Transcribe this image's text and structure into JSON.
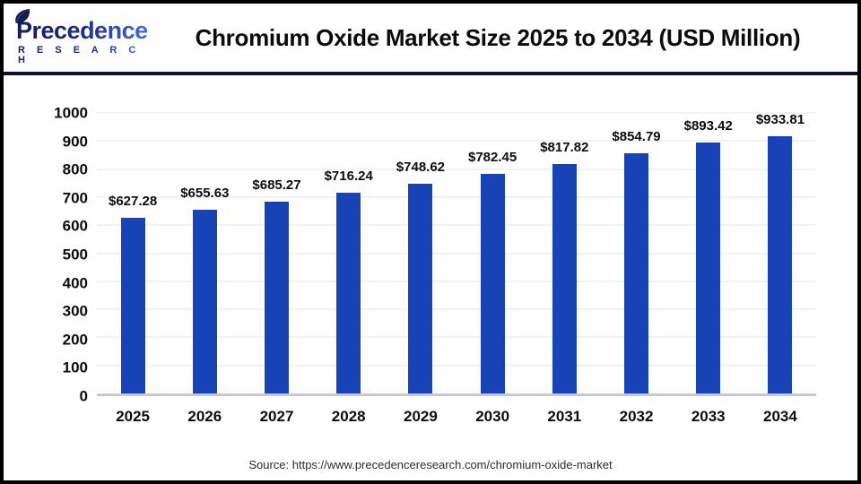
{
  "logo": {
    "name": "Precedence",
    "subtitle": "R E S E A R C H"
  },
  "header": {
    "title": "Chromium Oxide Market Size 2025 to 2034 (USD Million)"
  },
  "source": {
    "text": "Source: https://www.precedenceresearch.com/chromium-oxide-market"
  },
  "colors": {
    "bar": "#1843b7",
    "divider": "#0d1334",
    "page_border": "#000000",
    "axis_line": "#c9c9c9",
    "gridline": "#f2f2f2",
    "logo_dark_navy": "#161e55",
    "logo_blue": "#3f73dd",
    "text": "#0d0d0d"
  },
  "chart_data": {
    "type": "bar",
    "title": "Chromium Oxide Market Size 2025 to 2034 (USD Million)",
    "categories": [
      "2025",
      "2026",
      "2027",
      "2028",
      "2029",
      "2030",
      "2031",
      "2032",
      "2033",
      "2034"
    ],
    "values": [
      627.28,
      655.63,
      685.27,
      716.24,
      748.62,
      782.45,
      817.82,
      854.79,
      893.42,
      933.81
    ],
    "labels": [
      "$627.28",
      "$655.63",
      "$685.27",
      "$716.24",
      "$748.62",
      "$782.45",
      "$817.82",
      "$854.79",
      "$893.42",
      "$933.81"
    ],
    "xlabel": "",
    "ylabel": "",
    "ylim": [
      0,
      1000
    ],
    "yticks": [
      0,
      100,
      200,
      300,
      400,
      500,
      600,
      700,
      800,
      900,
      1000
    ],
    "grid": true,
    "legend": false,
    "bar_color": "#1843b7",
    "value_prefix": "$",
    "unit": "USD Million"
  }
}
